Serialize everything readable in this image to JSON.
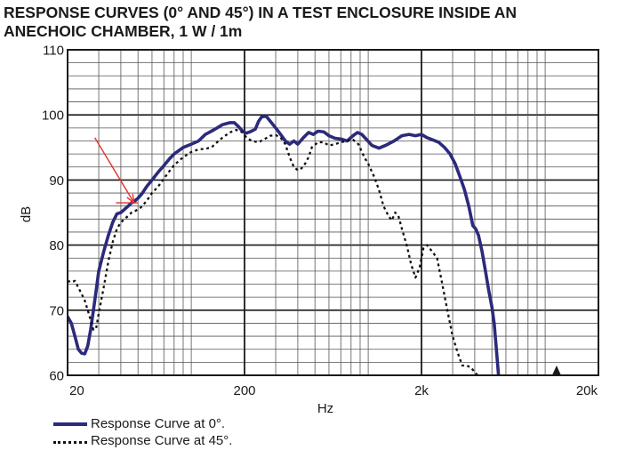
{
  "title_lines": [
    "RESPONSE CURVES (0° AND 45°) IN A TEST ENCLOSURE INSIDE AN",
    "ANECHOIC CHAMBER, 1 W / 1m"
  ],
  "chart_data": {
    "type": "line",
    "title": "RESPONSE CURVES (0° AND 45°) IN A TEST ENCLOSURE INSIDE AN ANECHOIC CHAMBER, 1 W / 1m",
    "xlabel": "Hz",
    "ylabel": "dB",
    "x_scale": "log",
    "xlim": [
      20,
      20000
    ],
    "ylim": [
      60,
      110
    ],
    "x_ticks": [
      {
        "value": 20,
        "label": "20"
      },
      {
        "value": 200,
        "label": "200"
      },
      {
        "value": 2000,
        "label": "2k"
      },
      {
        "value": 20000,
        "label": "20k"
      }
    ],
    "y_ticks": [
      {
        "value": 60,
        "label": "60"
      },
      {
        "value": 70,
        "label": "70"
      },
      {
        "value": 80,
        "label": "80"
      },
      {
        "value": 90,
        "label": "90"
      },
      {
        "value": 100,
        "label": "100"
      },
      {
        "value": 110,
        "label": "110"
      }
    ],
    "grid": true,
    "legend_position": "bottom-left",
    "series": [
      {
        "name": "Response Curve at 0°.",
        "style": "solid",
        "color": "#2b2a7c",
        "points": [
          [
            20,
            69
          ],
          [
            21,
            68
          ],
          [
            22,
            66
          ],
          [
            23,
            64
          ],
          [
            24,
            63.4
          ],
          [
            25,
            63.3
          ],
          [
            26,
            64.5
          ],
          [
            27,
            67
          ],
          [
            28,
            70
          ],
          [
            29,
            73
          ],
          [
            30,
            76
          ],
          [
            32,
            79
          ],
          [
            34,
            81.5
          ],
          [
            36,
            83.5
          ],
          [
            38,
            84.8
          ],
          [
            40,
            85
          ],
          [
            42,
            85.5
          ],
          [
            44,
            86
          ],
          [
            46,
            86.5
          ],
          [
            48,
            86.8
          ],
          [
            50,
            87.2
          ],
          [
            53,
            88
          ],
          [
            56,
            89
          ],
          [
            60,
            90
          ],
          [
            65,
            91.2
          ],
          [
            70,
            92.2
          ],
          [
            75,
            93.2
          ],
          [
            80,
            94
          ],
          [
            90,
            95
          ],
          [
            100,
            95.5
          ],
          [
            110,
            96
          ],
          [
            120,
            97
          ],
          [
            130,
            97.5
          ],
          [
            140,
            98
          ],
          [
            150,
            98.5
          ],
          [
            165,
            98.8
          ],
          [
            175,
            98.8
          ],
          [
            185,
            98.2
          ],
          [
            195,
            97.5
          ],
          [
            205,
            97.2
          ],
          [
            215,
            97.4
          ],
          [
            230,
            97.8
          ],
          [
            240,
            99
          ],
          [
            250,
            99.7
          ],
          [
            265,
            99.8
          ],
          [
            280,
            99
          ],
          [
            300,
            98
          ],
          [
            320,
            97
          ],
          [
            340,
            96
          ],
          [
            360,
            95.5
          ],
          [
            380,
            96
          ],
          [
            400,
            95.5
          ],
          [
            430,
            96.5
          ],
          [
            460,
            97.3
          ],
          [
            490,
            97
          ],
          [
            520,
            97.5
          ],
          [
            560,
            97.4
          ],
          [
            600,
            96.8
          ],
          [
            650,
            96.4
          ],
          [
            700,
            96.3
          ],
          [
            760,
            96
          ],
          [
            820,
            96.8
          ],
          [
            870,
            97.3
          ],
          [
            920,
            97
          ],
          [
            980,
            96.2
          ],
          [
            1050,
            95.3
          ],
          [
            1150,
            94.9
          ],
          [
            1250,
            95.3
          ],
          [
            1400,
            96
          ],
          [
            1550,
            96.8
          ],
          [
            1700,
            97
          ],
          [
            1850,
            96.8
          ],
          [
            2000,
            97
          ],
          [
            2150,
            96.5
          ],
          [
            2300,
            96.2
          ],
          [
            2500,
            95.8
          ],
          [
            2700,
            95
          ],
          [
            2900,
            94
          ],
          [
            3100,
            92.5
          ],
          [
            3300,
            90.5
          ],
          [
            3500,
            88.5
          ],
          [
            3700,
            86
          ],
          [
            3900,
            83
          ],
          [
            4050,
            82.5
          ],
          [
            4200,
            81.5
          ],
          [
            4400,
            79
          ],
          [
            4600,
            76
          ],
          [
            4800,
            73
          ],
          [
            5000,
            70.5
          ],
          [
            5150,
            68
          ],
          [
            5300,
            64
          ],
          [
            5450,
            60
          ]
        ]
      },
      {
        "name": "Response Curve at 45°.",
        "style": "dotted",
        "color": "#111111",
        "points": [
          [
            20,
            74.5
          ],
          [
            21,
            74.3
          ],
          [
            22,
            74.5
          ],
          [
            23,
            73.5
          ],
          [
            24,
            72.5
          ],
          [
            25,
            71.5
          ],
          [
            26,
            70
          ],
          [
            27,
            68.5
          ],
          [
            28,
            67
          ],
          [
            29,
            67.2
          ],
          [
            30,
            69.5
          ],
          [
            32,
            73.5
          ],
          [
            34,
            77.5
          ],
          [
            36,
            80.5
          ],
          [
            38,
            82.5
          ],
          [
            40,
            83.5
          ],
          [
            42,
            84
          ],
          [
            44,
            84.5
          ],
          [
            46,
            85
          ],
          [
            48,
            85.2
          ],
          [
            52,
            85.8
          ],
          [
            56,
            86.8
          ],
          [
            60,
            88
          ],
          [
            65,
            89
          ],
          [
            70,
            90.2
          ],
          [
            75,
            91.3
          ],
          [
            80,
            92.3
          ],
          [
            90,
            93.5
          ],
          [
            100,
            94.3
          ],
          [
            110,
            94.7
          ],
          [
            120,
            94.8
          ],
          [
            130,
            95
          ],
          [
            140,
            95.8
          ],
          [
            150,
            96.5
          ],
          [
            165,
            97.3
          ],
          [
            180,
            97.7
          ],
          [
            195,
            97.3
          ],
          [
            205,
            96.5
          ],
          [
            220,
            96
          ],
          [
            240,
            95.8
          ],
          [
            260,
            96.3
          ],
          [
            280,
            96.8
          ],
          [
            300,
            96.9
          ],
          [
            320,
            96.5
          ],
          [
            340,
            95.5
          ],
          [
            360,
            93.5
          ],
          [
            380,
            92
          ],
          [
            400,
            91.5
          ],
          [
            420,
            91.8
          ],
          [
            440,
            92.5
          ],
          [
            460,
            93.5
          ],
          [
            480,
            95
          ],
          [
            520,
            95.8
          ],
          [
            560,
            95.8
          ],
          [
            600,
            95.3
          ],
          [
            650,
            95.5
          ],
          [
            700,
            95.8
          ],
          [
            760,
            96
          ],
          [
            820,
            96.2
          ],
          [
            880,
            95.5
          ],
          [
            950,
            93.5
          ],
          [
            1000,
            92.5
          ],
          [
            1080,
            90.5
          ],
          [
            1150,
            88.5
          ],
          [
            1220,
            86
          ],
          [
            1300,
            84.5
          ],
          [
            1360,
            83.8
          ],
          [
            1420,
            85
          ],
          [
            1480,
            84.5
          ],
          [
            1550,
            82.5
          ],
          [
            1650,
            80
          ],
          [
            1750,
            77
          ],
          [
            1850,
            75
          ],
          [
            1950,
            76.5
          ],
          [
            2050,
            79.5
          ],
          [
            2150,
            80
          ],
          [
            2300,
            79
          ],
          [
            2450,
            78
          ],
          [
            2600,
            74.5
          ],
          [
            2800,
            70
          ],
          [
            3000,
            66
          ],
          [
            3200,
            63.5
          ],
          [
            3400,
            61.5
          ],
          [
            3600,
            61.5
          ],
          [
            3800,
            61.2
          ],
          [
            4000,
            60.5
          ],
          [
            4150,
            60
          ]
        ]
      }
    ],
    "annotations": [
      {
        "type": "arrow",
        "color": "#e5302a",
        "from": [
          28.5,
          96.5
        ],
        "to": [
          47.5,
          86.5
        ]
      },
      {
        "type": "segment",
        "color": "#e5302a",
        "from": [
          37.5,
          86.5
        ],
        "to": [
          50,
          86.5
        ]
      },
      {
        "type": "marker",
        "shape": "triangle",
        "color": "#1a1a1a",
        "at": [
          11600,
          60
        ]
      }
    ]
  },
  "legend": {
    "items": [
      {
        "label": "Response Curve at 0°."
      },
      {
        "label": "Response Curve at 45°."
      }
    ]
  }
}
